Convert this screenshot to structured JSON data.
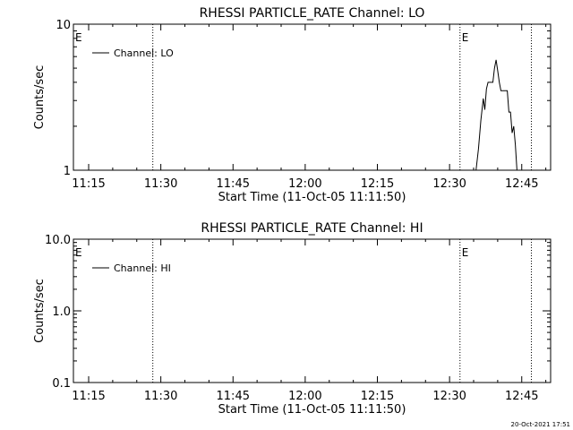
{
  "footer": {
    "timestamp": "20-Oct-2021 17:51"
  },
  "chart_data": [
    {
      "type": "line",
      "title": "RHESSI PARTICLE_RATE Channel: LO",
      "xlabel": "Start Time (11-Oct-05 11:11:50)",
      "ylabel": "Counts/sec",
      "xscale": "time",
      "xlim": [
        "11:11:50",
        "12:51:00"
      ],
      "x_ticks": [
        "11:15",
        "11:30",
        "11:45",
        "12:00",
        "12:15",
        "12:30",
        "12:45"
      ],
      "yscale": "log",
      "ylim": [
        1,
        10
      ],
      "y_ticks": [
        1,
        10
      ],
      "y_tick_labels": [
        "1",
        "10"
      ],
      "grid": false,
      "legend": {
        "position": "top-left",
        "entries": [
          "Channel: LO"
        ]
      },
      "event_markers": [
        {
          "time": "11:28:20",
          "label": ""
        },
        {
          "time": "12:32:10",
          "label": "E"
        },
        {
          "time": "12:47:00",
          "label": ""
        }
      ],
      "start_marker_label": "E",
      "series": [
        {
          "name": "Channel: LO",
          "x": [
            "12:35:30",
            "12:36:00",
            "12:36:30",
            "12:37:00",
            "12:37:20",
            "12:37:40",
            "12:38:00",
            "12:38:20",
            "12:38:40",
            "12:39:00",
            "12:39:20",
            "12:39:40",
            "12:40:00",
            "12:40:20",
            "12:40:40",
            "12:41:00",
            "12:41:20",
            "12:41:40",
            "12:42:00",
            "12:42:20",
            "12:42:40",
            "12:43:00",
            "12:43:20",
            "12:43:40",
            "12:44:00"
          ],
          "y": [
            1.0,
            1.4,
            2.2,
            3.1,
            2.6,
            3.6,
            4.0,
            4.0,
            4.0,
            4.0,
            5.0,
            5.7,
            4.8,
            4.0,
            3.5,
            3.5,
            3.5,
            3.5,
            3.5,
            2.5,
            2.5,
            1.8,
            2.0,
            1.5,
            1.0
          ]
        }
      ]
    },
    {
      "type": "line",
      "title": "RHESSI PARTICLE_RATE Channel: HI",
      "xlabel": "Start Time (11-Oct-05 11:11:50)",
      "ylabel": "Counts/sec",
      "xscale": "time",
      "xlim": [
        "11:11:50",
        "12:51:00"
      ],
      "x_ticks": [
        "11:15",
        "11:30",
        "11:45",
        "12:00",
        "12:15",
        "12:30",
        "12:45"
      ],
      "yscale": "log",
      "ylim": [
        0.1,
        10
      ],
      "y_ticks": [
        0.1,
        1,
        10
      ],
      "y_tick_labels": [
        "0.1",
        "1.0",
        "10.0"
      ],
      "grid": false,
      "legend": {
        "position": "top-left",
        "entries": [
          "Channel: HI"
        ]
      },
      "event_markers": [
        {
          "time": "11:28:20",
          "label": ""
        },
        {
          "time": "12:32:10",
          "label": "E"
        },
        {
          "time": "12:47:00",
          "label": ""
        }
      ],
      "start_marker_label": "E",
      "series": [
        {
          "name": "Channel: HI",
          "x": [],
          "y": []
        }
      ]
    }
  ]
}
